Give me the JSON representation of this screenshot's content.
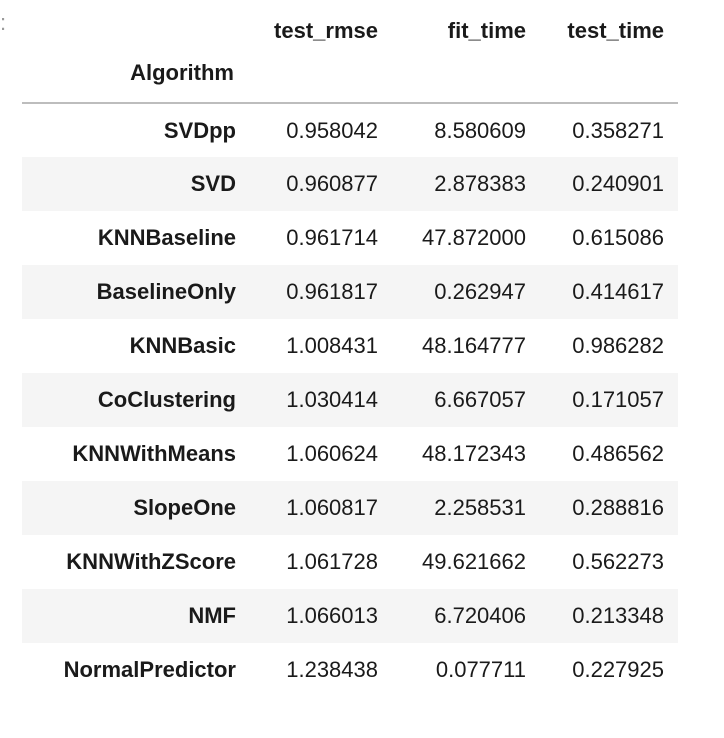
{
  "output_cell": {
    "gutter_glyph": ":"
  },
  "table": {
    "columns": [
      "test_rmse",
      "fit_time",
      "test_time"
    ],
    "index_name": "Algorithm",
    "rows": [
      {
        "label": "SVDpp",
        "values": [
          "0.958042",
          "8.580609",
          "0.358271"
        ]
      },
      {
        "label": "SVD",
        "values": [
          "0.960877",
          "2.878383",
          "0.240901"
        ]
      },
      {
        "label": "KNNBaseline",
        "values": [
          "0.961714",
          "47.872000",
          "0.615086"
        ]
      },
      {
        "label": "BaselineOnly",
        "values": [
          "0.961817",
          "0.262947",
          "0.414617"
        ]
      },
      {
        "label": "KNNBasic",
        "values": [
          "1.008431",
          "48.164777",
          "0.986282"
        ]
      },
      {
        "label": "CoClustering",
        "values": [
          "1.030414",
          "6.667057",
          "0.171057"
        ]
      },
      {
        "label": "KNNWithMeans",
        "values": [
          "1.060624",
          "48.172343",
          "0.486562"
        ]
      },
      {
        "label": "SlopeOne",
        "values": [
          "1.060817",
          "2.258531",
          "0.288816"
        ]
      },
      {
        "label": "KNNWithZScore",
        "values": [
          "1.061728",
          "49.621662",
          "0.562273"
        ]
      },
      {
        "label": "NMF",
        "values": [
          "1.066013",
          "6.720406",
          "0.213348"
        ]
      },
      {
        "label": "NormalPredictor",
        "values": [
          "1.238438",
          "0.077711",
          "0.227925"
        ]
      }
    ]
  },
  "colors": {
    "text": "#1a1a1a",
    "stripe": "#f5f5f5",
    "header_rule": "#bdbdbd"
  }
}
